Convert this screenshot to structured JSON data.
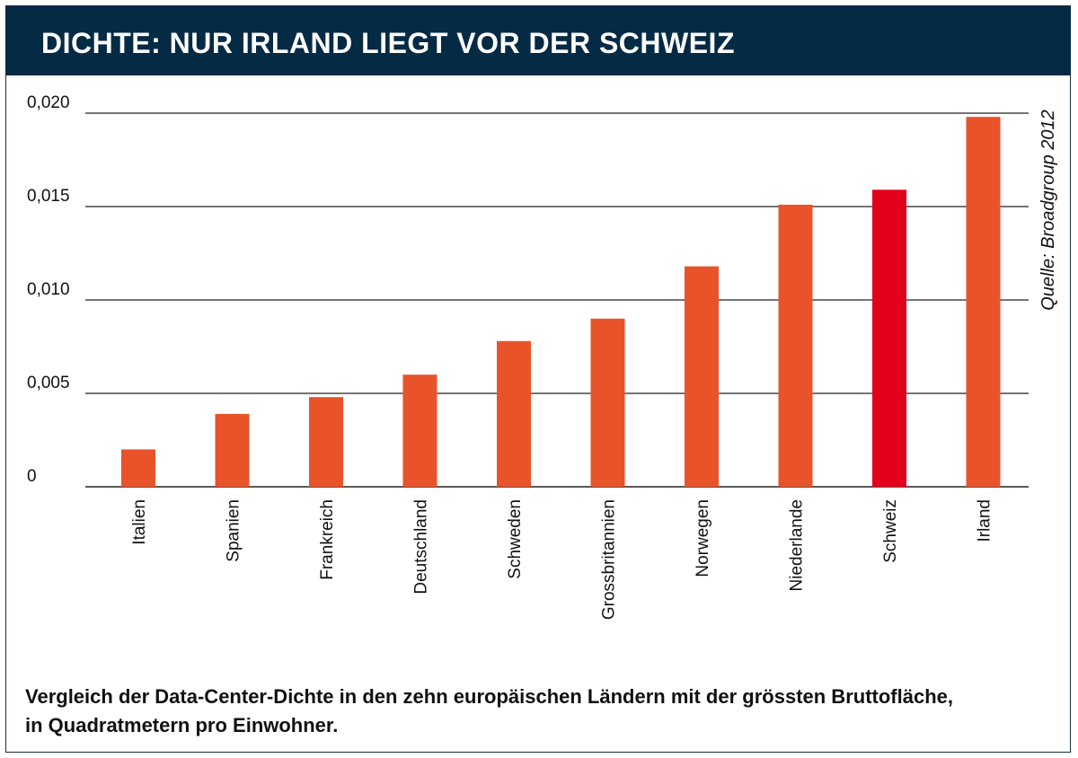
{
  "header": {
    "title": "DICHTE: NUR IRLAND LIEGT VOR DER SCHWEIZ"
  },
  "source": "Quelle: Broadgroup 2012",
  "caption": {
    "line1": "Vergleich der Data-Center-Dichte in den zehn europäischen Ländern mit der grössten Bruttofläche,",
    "line2": "in Quadratmetern pro Einwohner."
  },
  "colors": {
    "header_bg": "#052a44",
    "bar": "#e8532a",
    "highlight": "#e2001a",
    "gridline": "#222222"
  },
  "chart_data": {
    "type": "bar",
    "title": "DICHTE: NUR IRLAND LIEGT VOR DER SCHWEIZ",
    "xlabel": "",
    "ylabel": "",
    "categories": [
      "Italien",
      "Spanien",
      "Frankreich",
      "Deutschland",
      "Schweden",
      "Grossbritannien",
      "Norwegen",
      "Niederlande",
      "Schweiz",
      "Irland"
    ],
    "values": [
      0.002,
      0.0039,
      0.0048,
      0.006,
      0.0078,
      0.009,
      0.0118,
      0.0151,
      0.0159,
      0.0198
    ],
    "highlight_category": "Schweiz",
    "ylim": [
      0,
      0.02
    ],
    "yticks": [
      0,
      0.005,
      0.01,
      0.015,
      0.02
    ],
    "ytick_labels": [
      "0",
      "0,005",
      "0,010",
      "0,015",
      "0,020"
    ],
    "grid": true,
    "legend": "none"
  }
}
